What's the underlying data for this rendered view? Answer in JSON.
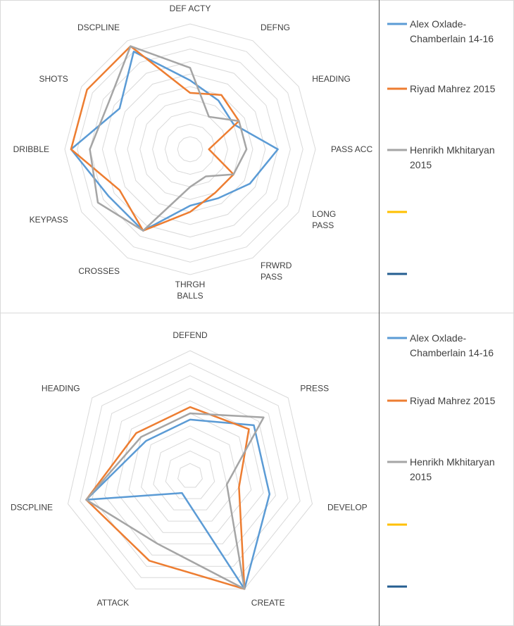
{
  "chart_data": [
    {
      "type": "radar",
      "title": "",
      "rlim": [
        0,
        10
      ],
      "rings": 10,
      "axes": [
        "DEF ACTY",
        "DEFNG",
        "HEADING",
        "PASS ACC",
        "LONG PASS",
        "FRWRD PASS",
        "THRGH BALLS",
        "CROSSES",
        "KEYPASS",
        "DRIBBLE",
        "SHOTS",
        "DSCPLINE"
      ],
      "series": [
        {
          "name": "Alex Oxlade-Chamberlain 14-16",
          "color": "#5B9BD5",
          "values": [
            5.5,
            4.5,
            4.0,
            7.0,
            5.5,
            4.5,
            4.5,
            7.5,
            7.5,
            9.5,
            6.5,
            9.0
          ]
        },
        {
          "name": "Riyad Mahrez 2015",
          "color": "#ED7D31",
          "values": [
            4.5,
            5.0,
            4.5,
            1.5,
            4.0,
            4.0,
            5.0,
            7.5,
            6.5,
            9.5,
            9.5,
            9.5
          ]
        },
        {
          "name": "Henrikh Mkhitaryan 2015",
          "color": "#A5A5A5",
          "values": [
            6.5,
            3.0,
            4.5,
            4.5,
            4.0,
            2.5,
            3.0,
            7.5,
            8.5,
            8.0,
            7.5,
            9.5
          ]
        },
        {
          "name": "",
          "color": "#FFC000",
          "values": []
        },
        {
          "name": "",
          "color": "#255E91",
          "values": []
        }
      ]
    },
    {
      "type": "radar",
      "title": "",
      "rlim": [
        0,
        10
      ],
      "rings": 10,
      "axes": [
        "DEFEND",
        "PRESS",
        "DEVELOP",
        "CREATE",
        "ATTACK",
        "DSCPLINE",
        "HEADING"
      ],
      "series": [
        {
          "name": "Alex Oxlade-Chamberlain 14-16",
          "color": "#5B9BD5",
          "values": [
            4.5,
            6.5,
            6.5,
            10.0,
            1.5,
            8.5,
            4.5
          ]
        },
        {
          "name": "Riyad Mahrez 2015",
          "color": "#ED7D31",
          "values": [
            5.5,
            6.0,
            4.0,
            10.0,
            7.5,
            8.5,
            5.5
          ]
        },
        {
          "name": "Henrikh Mkhitaryan 2015",
          "color": "#A5A5A5",
          "values": [
            5.0,
            7.5,
            3.0,
            10.0,
            6.0,
            8.5,
            5.0
          ]
        },
        {
          "name": "",
          "color": "#FFC000",
          "values": []
        },
        {
          "name": "",
          "color": "#255E91",
          "values": []
        }
      ]
    }
  ]
}
